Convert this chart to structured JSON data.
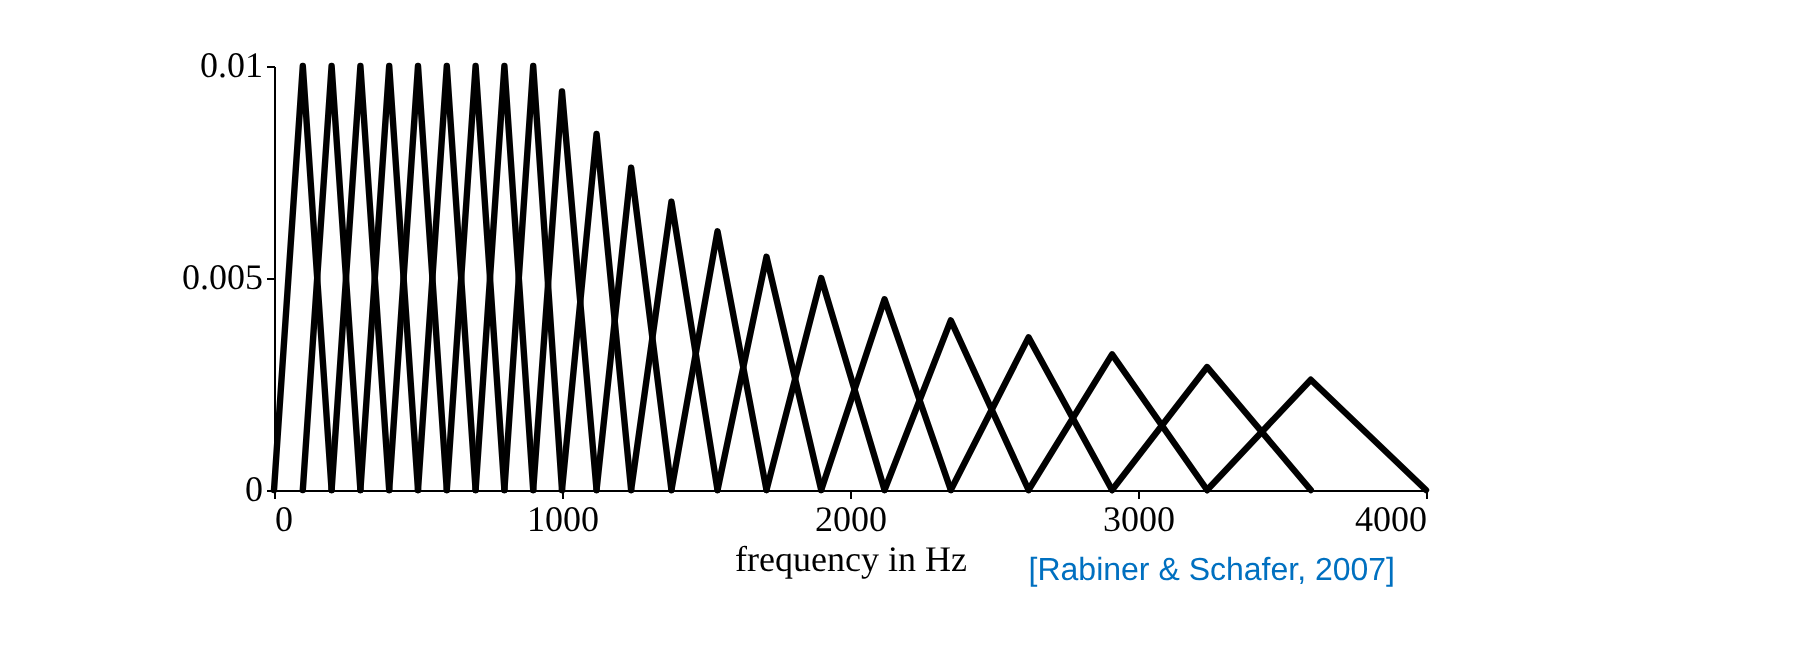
{
  "chart_data": {
    "type": "line",
    "xlabel": "frequency in Hz",
    "annotations": [
      "[Rabiner & Schafer, 2007]"
    ],
    "xlim": [
      0,
      4000
    ],
    "ylim": [
      0,
      0.01
    ],
    "xticks": [
      0,
      1000,
      2000,
      3000,
      4000
    ],
    "yticks": [
      0,
      0.005,
      0.01
    ],
    "grid": false,
    "legend": false,
    "marker": "none",
    "line_style": "solid",
    "series": [
      {
        "color": "#000000",
        "x": [
          0,
          100,
          200
        ],
        "values": [
          0,
          0.01,
          0
        ]
      },
      {
        "color": "#000000",
        "x": [
          100,
          200,
          300
        ],
        "values": [
          0,
          0.01,
          0
        ]
      },
      {
        "color": "#000000",
        "x": [
          200,
          300,
          400
        ],
        "values": [
          0,
          0.01,
          0
        ]
      },
      {
        "color": "#000000",
        "x": [
          300,
          400,
          500
        ],
        "values": [
          0,
          0.01,
          0
        ]
      },
      {
        "color": "#000000",
        "x": [
          400,
          500,
          600
        ],
        "values": [
          0,
          0.01,
          0
        ]
      },
      {
        "color": "#000000",
        "x": [
          500,
          600,
          700
        ],
        "values": [
          0,
          0.01,
          0
        ]
      },
      {
        "color": "#000000",
        "x": [
          600,
          700,
          800
        ],
        "values": [
          0,
          0.01,
          0
        ]
      },
      {
        "color": "#000000",
        "x": [
          700,
          800,
          900
        ],
        "values": [
          0,
          0.01,
          0
        ]
      },
      {
        "color": "#000000",
        "x": [
          800,
          900,
          1000
        ],
        "values": [
          0,
          0.01,
          0
        ]
      },
      {
        "color": "#000000",
        "x": [
          900,
          1000,
          1120
        ],
        "values": [
          0,
          0.0094,
          0
        ]
      },
      {
        "color": "#000000",
        "x": [
          1000,
          1120,
          1240
        ],
        "values": [
          0,
          0.0084,
          0
        ]
      },
      {
        "color": "#000000",
        "x": [
          1120,
          1240,
          1380
        ],
        "values": [
          0,
          0.0076,
          0
        ]
      },
      {
        "color": "#000000",
        "x": [
          1240,
          1380,
          1540
        ],
        "values": [
          0,
          0.0068,
          0
        ]
      },
      {
        "color": "#000000",
        "x": [
          1380,
          1540,
          1710
        ],
        "values": [
          0,
          0.0061,
          0
        ]
      },
      {
        "color": "#000000",
        "x": [
          1540,
          1710,
          1900
        ],
        "values": [
          0,
          0.0055,
          0
        ]
      },
      {
        "color": "#000000",
        "x": [
          1710,
          1900,
          2120
        ],
        "values": [
          0,
          0.005,
          0
        ]
      },
      {
        "color": "#000000",
        "x": [
          1900,
          2120,
          2350
        ],
        "values": [
          0,
          0.0045,
          0
        ]
      },
      {
        "color": "#000000",
        "x": [
          2120,
          2350,
          2620
        ],
        "values": [
          0,
          0.004,
          0
        ]
      },
      {
        "color": "#000000",
        "x": [
          2350,
          2620,
          2910
        ],
        "values": [
          0,
          0.0036,
          0
        ]
      },
      {
        "color": "#000000",
        "x": [
          2620,
          2910,
          3240
        ],
        "values": [
          0,
          0.0032,
          0
        ]
      },
      {
        "color": "#000000",
        "x": [
          2910,
          3240,
          3600
        ],
        "values": [
          0,
          0.0029,
          0
        ]
      },
      {
        "color": "#000000",
        "x": [
          3240,
          3600,
          4000
        ],
        "values": [
          0,
          0.0026,
          0
        ]
      }
    ]
  }
}
